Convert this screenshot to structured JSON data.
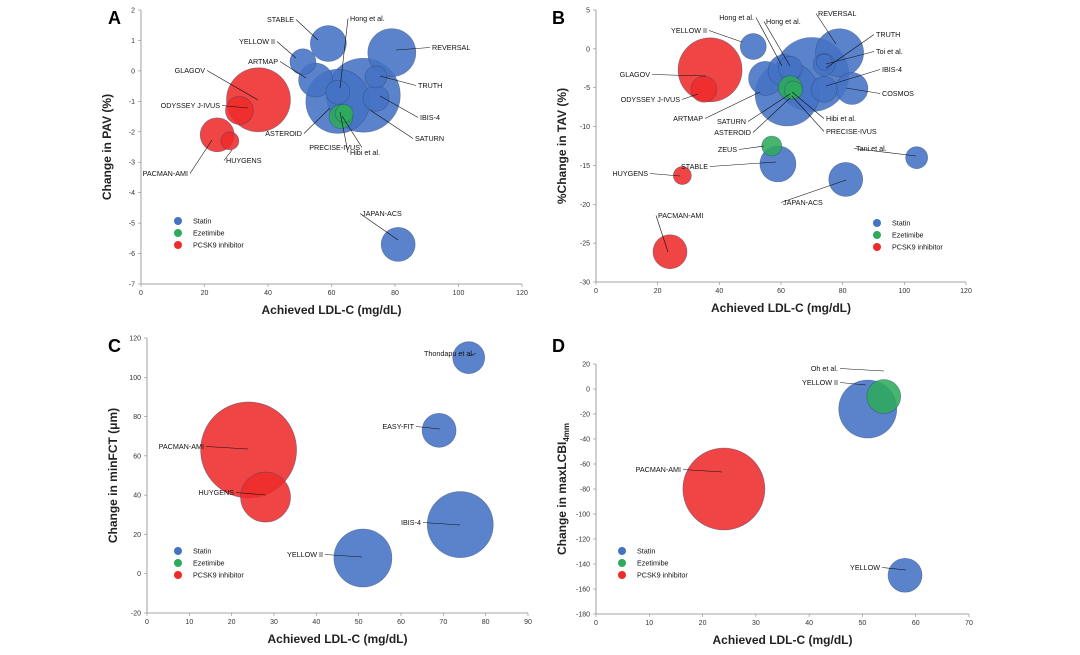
{
  "legend_colors": {
    "Statin": "#4472C4",
    "Ezetimibe": "#2EAA5C",
    "PCSK9 inhibitor": "#EE2B2B"
  },
  "chart_data": [
    {
      "panel": "A",
      "type": "scatter",
      "xlabel": "Achieved LDL-C (mg/dL)",
      "ylabel": "Change in PAV (%)",
      "xlim": [
        0,
        120
      ],
      "ylim": [
        -7,
        2
      ],
      "xticks": [
        0,
        20,
        40,
        60,
        80,
        100,
        120
      ],
      "yticks": [
        -7,
        -6,
        -5,
        -4,
        -3,
        -2,
        -1,
        0,
        1,
        2
      ],
      "legend": [
        "Statin",
        "Ezetimibe",
        "PCSK9 inhibitor"
      ],
      "legend_position": "lower-left",
      "points": [
        {
          "x": 59,
          "y": 0.9,
          "r": 18,
          "g": "Statin",
          "label": "STABLE"
        },
        {
          "x": 51,
          "y": 0.3,
          "r": 13,
          "g": "Statin",
          "label": "YELLOW II"
        },
        {
          "x": 55,
          "y": -0.3,
          "r": 17,
          "g": "Statin",
          "label": "ARTMAP"
        },
        {
          "x": 62,
          "y": -0.7,
          "r": 12,
          "g": "Statin",
          "label": "Hong et al."
        },
        {
          "x": 79,
          "y": 0.6,
          "r": 24,
          "g": "Statin",
          "label": "REVERSAL"
        },
        {
          "x": 74,
          "y": -0.2,
          "r": 11,
          "g": "Statin",
          "label": "TRUTH"
        },
        {
          "x": 74,
          "y": -0.9,
          "r": 13,
          "g": "Statin",
          "label": "IBIS-4"
        },
        {
          "x": 70,
          "y": -0.8,
          "r": 37,
          "g": "Statin",
          "label": "SATURN"
        },
        {
          "x": 62,
          "y": -1.0,
          "r": 32,
          "g": "Statin",
          "label": "ASTEROID"
        },
        {
          "x": 81,
          "y": -5.7,
          "r": 17,
          "g": "Statin",
          "label": "JAPAN-ACS"
        },
        {
          "x": 64,
          "y": -1.4,
          "r": 9,
          "g": "Ezetimibe",
          "label": "PRECISE-IVUS"
        },
        {
          "x": 63,
          "y": -1.5,
          "r": 12,
          "g": "Ezetimibe",
          "label": "Hibi et al."
        },
        {
          "x": 37,
          "y": -0.95,
          "r": 32,
          "g": "PCSK9 inhibitor",
          "label": "GLAGOV"
        },
        {
          "x": 31,
          "y": -1.3,
          "r": 14,
          "g": "PCSK9 inhibitor",
          "label": "ODYSSEY J-IVUS"
        },
        {
          "x": 24,
          "y": -2.1,
          "r": 17,
          "g": "PCSK9 inhibitor",
          "label": "PACMAN-AMI"
        },
        {
          "x": 28,
          "y": -2.3,
          "r": 9,
          "g": "PCSK9 inhibitor",
          "label": "HUYGENS"
        }
      ]
    },
    {
      "panel": "B",
      "type": "scatter",
      "xlabel": "Achieved LDL-C (mg/dL)",
      "ylabel": "%Change in TAV (%)",
      "xlim": [
        0,
        120
      ],
      "ylim": [
        -30,
        5
      ],
      "xticks": [
        0,
        20,
        40,
        60,
        80,
        100,
        120
      ],
      "yticks": [
        -30,
        -25,
        -20,
        -15,
        -10,
        -5,
        0,
        5
      ],
      "legend": [
        "Statin",
        "Ezetimibe",
        "PCSK9 inhibitor"
      ],
      "legend_position": "lower-right",
      "points": [
        {
          "x": 51,
          "y": 0.3,
          "r": 13,
          "g": "Statin",
          "label": "YELLOW II"
        },
        {
          "x": 63,
          "y": -2.5,
          "r": 12,
          "g": "Statin",
          "label": "Hong et al."
        },
        {
          "x": 61,
          "y": -2.8,
          "r": 16,
          "g": "Statin",
          "label": "Hong et al."
        },
        {
          "x": 79,
          "y": -0.5,
          "r": 24,
          "g": "Statin",
          "label": "REVERSAL"
        },
        {
          "x": 74,
          "y": -2.0,
          "r": 11,
          "g": "Statin",
          "label": "TRUTH"
        },
        {
          "x": 74,
          "y": -1.7,
          "r": 8,
          "g": "Statin",
          "label": "Toi et al."
        },
        {
          "x": 74,
          "y": -5.2,
          "r": 13,
          "g": "Statin",
          "label": "IBIS-4"
        },
        {
          "x": 83,
          "y": -5.1,
          "r": 16,
          "g": "Statin",
          "label": "COSMOS"
        },
        {
          "x": 55,
          "y": -3.8,
          "r": 17,
          "g": "Statin",
          "label": "ARTMAP"
        },
        {
          "x": 70,
          "y": -3.3,
          "r": 37,
          "g": "Statin",
          "label": "SATURN"
        },
        {
          "x": 62,
          "y": -5.8,
          "r": 32,
          "g": "Statin",
          "label": "ASTEROID"
        },
        {
          "x": 59,
          "y": -14.8,
          "r": 18,
          "g": "Statin",
          "label": "STABLE"
        },
        {
          "x": 81,
          "y": -16.8,
          "r": 17,
          "g": "Statin",
          "label": "JAPAN-ACS"
        },
        {
          "x": 104,
          "y": -14.0,
          "r": 11,
          "g": "Statin",
          "label": "Tani et al."
        },
        {
          "x": 64,
          "y": -5.3,
          "r": 9,
          "g": "Ezetimibe",
          "label": "PRECISE-IVUS"
        },
        {
          "x": 63,
          "y": -5.0,
          "r": 12,
          "g": "Ezetimibe",
          "label": "Hibi et al."
        },
        {
          "x": 57,
          "y": -12.5,
          "r": 10,
          "g": "Ezetimibe",
          "label": "ZEUS"
        },
        {
          "x": 37,
          "y": -2.7,
          "r": 32,
          "g": "PCSK9 inhibitor",
          "label": "GLAGOV"
        },
        {
          "x": 35,
          "y": -5.2,
          "r": 13,
          "g": "PCSK9 inhibitor",
          "label": "ODYSSEY J-IVUS"
        },
        {
          "x": 28,
          "y": -16.3,
          "r": 9,
          "g": "PCSK9 inhibitor",
          "label": "HUYGENS"
        },
        {
          "x": 24,
          "y": -26.1,
          "r": 17,
          "g": "PCSK9 inhibitor",
          "label": "PACMAN-AMI"
        }
      ]
    },
    {
      "panel": "C",
      "type": "scatter",
      "xlabel": "Achieved LDL-C (mg/dL)",
      "ylabel": "Change in minFCT (μm)",
      "xlim": [
        0,
        90
      ],
      "ylim": [
        -20,
        120
      ],
      "xticks": [
        0,
        10,
        20,
        30,
        40,
        50,
        60,
        70,
        80,
        90
      ],
      "yticks": [
        -20,
        0,
        20,
        40,
        60,
        80,
        100,
        120
      ],
      "legend": [
        "Statin",
        "Ezetimibe",
        "PCSK9 inhibitor"
      ],
      "legend_position": "lower-left",
      "points": [
        {
          "x": 76,
          "y": 110,
          "r": 16,
          "g": "Statin",
          "label": "Thondapu et al."
        },
        {
          "x": 69,
          "y": 73,
          "r": 17,
          "g": "Statin",
          "label": "EASY-FIT"
        },
        {
          "x": 74,
          "y": 25,
          "r": 33,
          "g": "Statin",
          "label": "IBIS-4"
        },
        {
          "x": 51,
          "y": 8,
          "r": 29,
          "g": "Statin",
          "label": "YELLOW II"
        },
        {
          "x": 24,
          "y": 63,
          "r": 48,
          "g": "PCSK9 inhibitor",
          "label": "PACMAN-AMI"
        },
        {
          "x": 28,
          "y": 39,
          "r": 25,
          "g": "PCSK9 inhibitor",
          "label": "HUYGENS"
        }
      ]
    },
    {
      "panel": "D",
      "type": "scatter",
      "xlabel": "Achieved LDL-C (mg/dL)",
      "ylabel": "Change in maxLCBI4mm",
      "xlim": [
        0,
        70
      ],
      "ylim": [
        -180,
        20
      ],
      "xticks": [
        0,
        10,
        20,
        30,
        40,
        50,
        60,
        70
      ],
      "yticks": [
        -180,
        -160,
        -140,
        -120,
        -100,
        -80,
        -60,
        -40,
        -20,
        0,
        20
      ],
      "legend": [
        "Statin",
        "Ezetimibe",
        "PCSK9 inhibitor"
      ],
      "legend_position": "lower-left",
      "points": [
        {
          "x": 51,
          "y": -16,
          "r": 29,
          "g": "Statin",
          "label": "YELLOW II"
        },
        {
          "x": 54,
          "y": -6,
          "r": 17,
          "g": "Ezetimibe",
          "label": "Oh et al."
        },
        {
          "x": 24,
          "y": -80,
          "r": 41,
          "g": "PCSK9 inhibitor",
          "label": "PACMAN-AMI"
        },
        {
          "x": 58,
          "y": -149,
          "r": 17,
          "g": "Statin",
          "label": "YELLOW"
        }
      ]
    }
  ]
}
